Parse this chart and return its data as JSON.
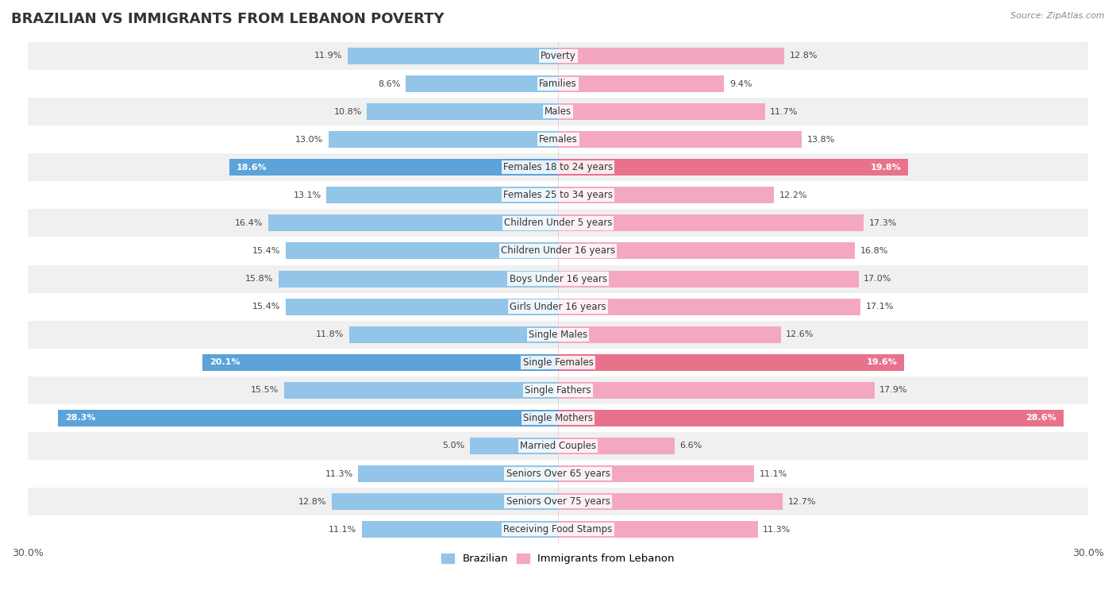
{
  "title": "BRAZILIAN VS IMMIGRANTS FROM LEBANON POVERTY",
  "source": "Source: ZipAtlas.com",
  "categories": [
    "Poverty",
    "Families",
    "Males",
    "Females",
    "Females 18 to 24 years",
    "Females 25 to 34 years",
    "Children Under 5 years",
    "Children Under 16 years",
    "Boys Under 16 years",
    "Girls Under 16 years",
    "Single Males",
    "Single Females",
    "Single Fathers",
    "Single Mothers",
    "Married Couples",
    "Seniors Over 65 years",
    "Seniors Over 75 years",
    "Receiving Food Stamps"
  ],
  "brazilian": [
    11.9,
    8.6,
    10.8,
    13.0,
    18.6,
    13.1,
    16.4,
    15.4,
    15.8,
    15.4,
    11.8,
    20.1,
    15.5,
    28.3,
    5.0,
    11.3,
    12.8,
    11.1
  ],
  "lebanon": [
    12.8,
    9.4,
    11.7,
    13.8,
    19.8,
    12.2,
    17.3,
    16.8,
    17.0,
    17.1,
    12.6,
    19.6,
    17.9,
    28.6,
    6.6,
    11.1,
    12.7,
    11.3
  ],
  "brazilian_color": "#92C5E8",
  "lebanon_color": "#F4A8C0",
  "brazilian_highlight_color": "#5BA3D9",
  "lebanon_highlight_color": "#E8728C",
  "highlight_rows": [
    4,
    11,
    13
  ],
  "background_color": "#FFFFFF",
  "row_even_color": "#F0F0F0",
  "row_odd_color": "#FFFFFF",
  "max_val": 30.0,
  "title_fontsize": 13,
  "label_fontsize": 8.5,
  "value_fontsize": 8,
  "legend_labels": [
    "Brazilian",
    "Immigrants from Lebanon"
  ]
}
